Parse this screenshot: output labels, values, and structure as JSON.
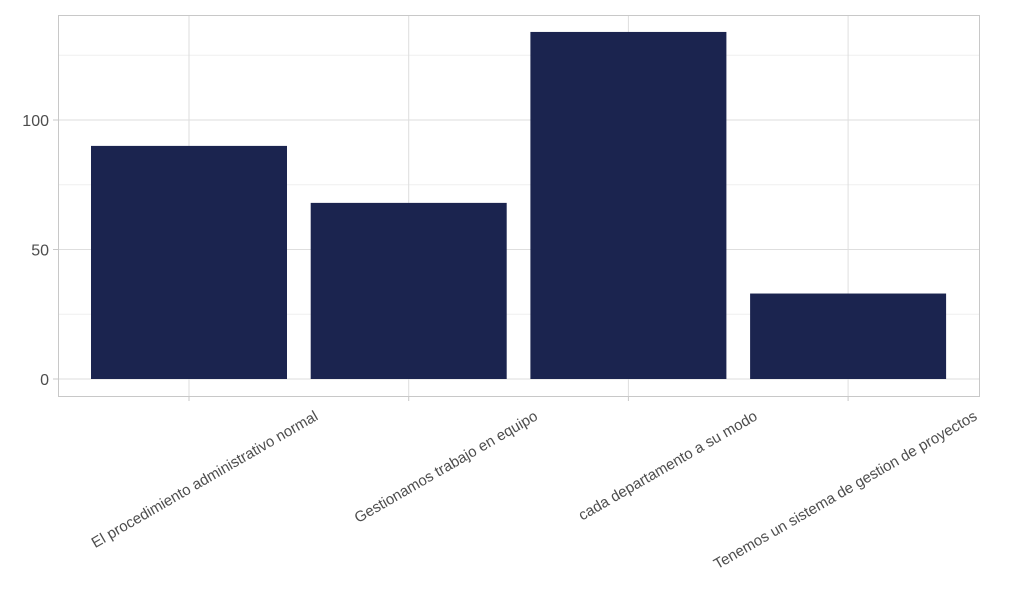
{
  "chart_data": {
    "type": "bar",
    "title": "",
    "xlabel": "",
    "ylabel": "",
    "categories": [
      "El procedimiento administrativo normal",
      "Gestionamos trabajo en equipo",
      "cada departamento a su modo",
      "Tenemos un sistema de gestion de proyectos"
    ],
    "values": [
      90,
      68,
      134,
      33
    ],
    "ylim": [
      -6.5,
      141
    ],
    "yticks": [
      0,
      50,
      100
    ],
    "grid": true,
    "legend": "none",
    "bar_color": "#1B244F"
  },
  "colors": {
    "bar": "#1B244F",
    "grid_major": "#DEDEDE",
    "grid_minor": "#EFEFEF",
    "panel_border": "#C8C8C8",
    "tick_text": "#4D4D4D"
  }
}
